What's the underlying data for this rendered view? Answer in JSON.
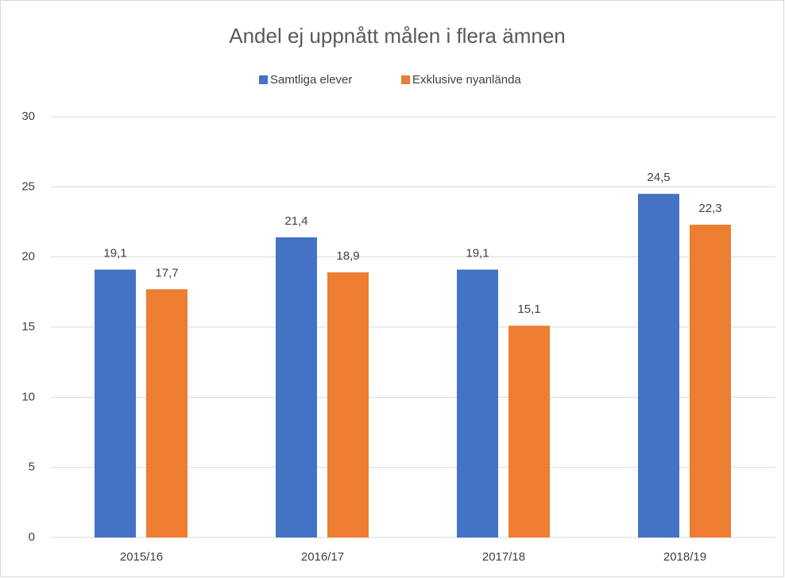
{
  "chart_data": {
    "type": "bar",
    "title": "Andel ej uppnått målen i flera ämnen",
    "categories": [
      "2015/16",
      "2016/17",
      "2017/18",
      "2018/19"
    ],
    "series": [
      {
        "name": "Samtliga elever",
        "color": "#4472c4",
        "values": [
          19.1,
          21.4,
          19.1,
          24.5
        ],
        "value_labels": [
          "19,1",
          "21,4",
          "19,1",
          "24,5"
        ]
      },
      {
        "name": "Exklusive nyanlända",
        "color": "#ed7d31",
        "values": [
          17.7,
          18.9,
          15.1,
          22.3
        ],
        "value_labels": [
          "17,7",
          "18,9",
          "15,1",
          "22,3"
        ]
      }
    ],
    "ylim": [
      0,
      30
    ],
    "yticks": [
      0,
      5,
      10,
      15,
      20,
      25,
      30
    ],
    "grid": true,
    "legend": "top"
  }
}
